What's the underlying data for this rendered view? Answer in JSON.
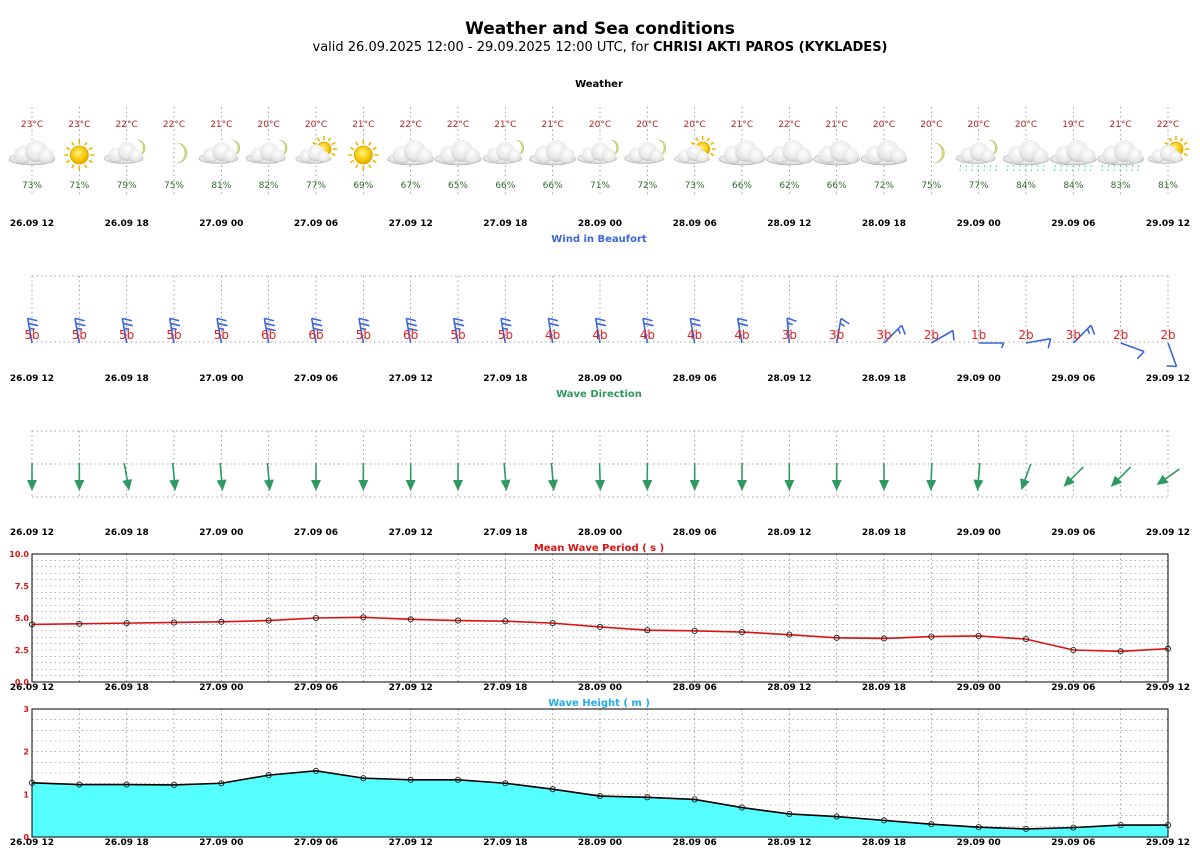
{
  "header": {
    "title": "Weather and Sea conditions",
    "subtitle_prefix": "valid 26.09.2025 12:00 - 29.09.2025 12:00 UTC, for ",
    "location": "CHRISI AKTI PAROS (KYKLADES)"
  },
  "time_labels": [
    "26.09 12",
    "26.09 18",
    "27.09 00",
    "27.09 06",
    "27.09 12",
    "27.09 18",
    "28.09 00",
    "28.09 06",
    "28.09 12",
    "28.09 18",
    "29.09 00",
    "29.09 06",
    "29.09 12"
  ],
  "weather": {
    "title": "Weather",
    "temperatures": [
      "23°C",
      "23°C",
      "22°C",
      "22°C",
      "21°C",
      "20°C",
      "20°C",
      "21°C",
      "22°C",
      "22°C",
      "21°C",
      "21°C",
      "20°C",
      "20°C",
      "20°C",
      "21°C",
      "22°C",
      "21°C",
      "20°C",
      "20°C",
      "20°C",
      "20°C",
      "19°C",
      "21°C",
      "22°C"
    ],
    "humidity": [
      "73%",
      "71%",
      "79%",
      "75%",
      "81%",
      "82%",
      "77%",
      "69%",
      "67%",
      "65%",
      "66%",
      "66%",
      "71%",
      "72%",
      "73%",
      "66%",
      "62%",
      "66%",
      "72%",
      "75%",
      "77%",
      "84%",
      "84%",
      "83%",
      "81%"
    ],
    "icons": [
      "cloud-icon",
      "sun-icon",
      "cloud-moon-icon",
      "moon-icon",
      "cloud-moon-icon",
      "cloud-moon-icon",
      "sun-cloud-icon",
      "sun-icon",
      "cloud-icon",
      "cloud-icon",
      "cloud-moon-icon",
      "cloud-icon",
      "cloud-moon-icon",
      "cloud-moon-icon",
      "sun-cloud-icon",
      "cloud-icon",
      "cloud-icon",
      "cloud-icon",
      "cloud-icon",
      "moon-icon",
      "rain-moon-icon",
      "rain-icon",
      "rain-icon",
      "rain-icon",
      "sun-cloud-icon"
    ],
    "colors": {
      "temperature": "#b22222",
      "humidity": "#2e6b2e"
    }
  },
  "wind": {
    "title": "Wind in Beaufort",
    "beaufort": [
      "5b",
      "5b",
      "5b",
      "5b",
      "5b",
      "6b",
      "6b",
      "5b",
      "6b",
      "5b",
      "5b",
      "4b",
      "4b",
      "4b",
      "4b",
      "4b",
      "3b",
      "3b",
      "3b",
      "2b",
      "1b",
      "2b",
      "3b",
      "2b",
      "2b"
    ],
    "direction_deg": [
      350,
      350,
      350,
      350,
      350,
      350,
      350,
      350,
      350,
      350,
      350,
      350,
      350,
      350,
      350,
      350,
      355,
      10,
      45,
      60,
      90,
      80,
      45,
      110,
      160
    ],
    "colors": {
      "title": "#3a66d6",
      "barb": "#3a66d6",
      "label": "#e02020"
    }
  },
  "waves": {
    "title": "Wave Direction",
    "toward_deg": [
      180,
      180,
      170,
      175,
      175,
      175,
      180,
      180,
      180,
      180,
      175,
      175,
      178,
      180,
      180,
      180,
      180,
      180,
      180,
      182,
      185,
      200,
      225,
      225,
      235
    ],
    "color": "#2e9960"
  },
  "chart_data": [
    {
      "type": "line",
      "title": "Mean Wave Period ( s )",
      "x": [
        "26.09 12",
        "26.09 15",
        "26.09 18",
        "26.09 21",
        "27.09 00",
        "27.09 03",
        "27.09 06",
        "27.09 09",
        "27.09 12",
        "27.09 15",
        "27.09 18",
        "27.09 21",
        "28.09 00",
        "28.09 03",
        "28.09 06",
        "28.09 09",
        "28.09 12",
        "28.09 15",
        "28.09 18",
        "28.09 21",
        "29.09 00",
        "29.09 03",
        "29.09 06",
        "29.09 09",
        "29.09 12"
      ],
      "values": [
        4.5,
        4.55,
        4.6,
        4.65,
        4.7,
        4.8,
        5.0,
        5.05,
        4.9,
        4.8,
        4.75,
        4.6,
        4.3,
        4.05,
        4.0,
        3.9,
        3.7,
        3.45,
        3.4,
        3.55,
        3.6,
        3.35,
        2.5,
        2.4,
        2.6
      ],
      "ylim": [
        0,
        10
      ],
      "yticks": [
        "0.0",
        "2.5",
        "5.0",
        "7.5",
        "10.0"
      ],
      "grid": true,
      "colors": {
        "line": "#dd1111",
        "title": "#dd1111"
      }
    },
    {
      "type": "area",
      "title": "Wave Height ( m )",
      "x": [
        "26.09 12",
        "26.09 15",
        "26.09 18",
        "26.09 21",
        "27.09 00",
        "27.09 03",
        "27.09 06",
        "27.09 09",
        "27.09 12",
        "27.09 15",
        "27.09 18",
        "27.09 21",
        "28.09 00",
        "28.09 03",
        "28.09 06",
        "28.09 09",
        "28.09 12",
        "28.09 15",
        "28.09 18",
        "28.09 21",
        "29.09 00",
        "29.09 03",
        "29.09 06",
        "29.09 09",
        "29.09 12"
      ],
      "values": [
        1.27,
        1.23,
        1.23,
        1.22,
        1.26,
        1.45,
        1.55,
        1.38,
        1.34,
        1.34,
        1.26,
        1.12,
        0.96,
        0.93,
        0.88,
        0.69,
        0.54,
        0.48,
        0.39,
        0.3,
        0.23,
        0.19,
        0.22,
        0.28,
        0.28
      ],
      "ylim": [
        0,
        3
      ],
      "yticks": [
        "0",
        "1",
        "2",
        "3"
      ],
      "grid": true,
      "colors": {
        "fill": "#55ffff",
        "line": "#000000",
        "title": "#22aaee"
      }
    }
  ]
}
